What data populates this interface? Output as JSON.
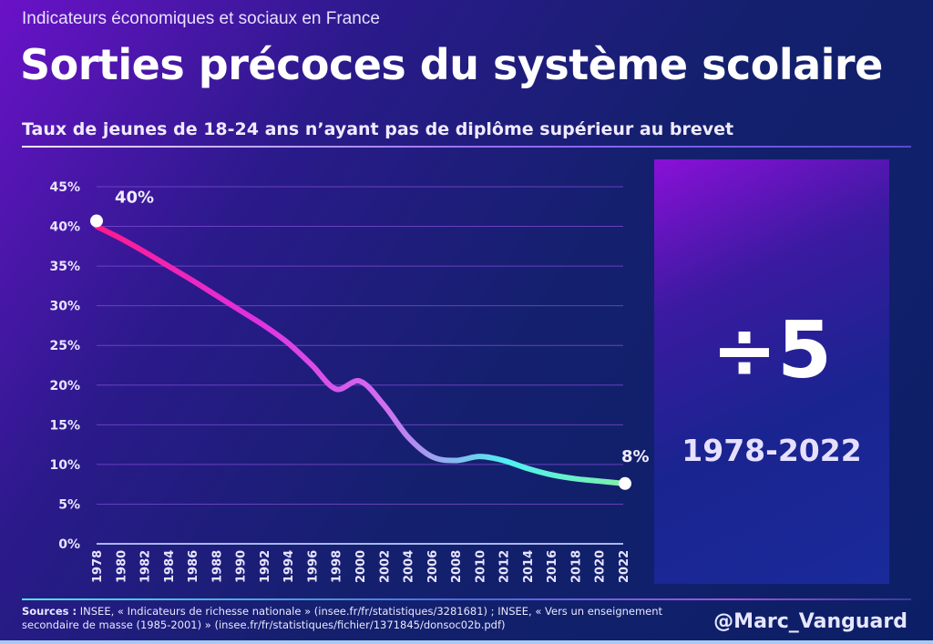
{
  "header": {
    "supertitle": "Indicateurs économiques et sociaux en France",
    "title": "Sorties précoces du système scolaire",
    "subtitle": "Taux de jeunes de 18-24 ans n’ayant pas de diplôme supérieur au brevet"
  },
  "panel": {
    "big_text": "÷5",
    "period": "1978-2022"
  },
  "footer": {
    "sources_label": "Sources :",
    "sources_text": " INSEE, « Indicateurs de richesse nationale » (insee.fr/fr/statistiques/3281681) ; INSEE, « Vers un enseignement secondaire de masse (1985-2001) » (insee.fr/fr/statistiques/fichier/1371845/donsoc02b.pdf)",
    "handle": "@Marc_Vanguard"
  },
  "chart_data": {
    "type": "line",
    "title": "Taux de jeunes de 18-24 ans n’ayant pas de diplôme supérieur au brevet",
    "x": [
      1978,
      1980,
      1982,
      1984,
      1986,
      1988,
      1990,
      1992,
      1994,
      1996,
      1998,
      2000,
      2002,
      2004,
      2006,
      2008,
      2010,
      2012,
      2014,
      2016,
      2018,
      2020,
      2022
    ],
    "values": [
      40,
      38.5,
      36.8,
      35,
      33.2,
      31.3,
      29.4,
      27.5,
      25.3,
      22.5,
      19.5,
      20.5,
      17.5,
      13.5,
      11,
      10.5,
      11,
      10.5,
      9.5,
      8.7,
      8.2,
      7.9,
      7.6
    ],
    "x_ticks": [
      "1978",
      "1980",
      "1982",
      "1984",
      "1986",
      "1988",
      "1990",
      "1992",
      "1994",
      "1996",
      "1998",
      "2000",
      "2002",
      "2004",
      "2006",
      "2008",
      "2010",
      "2012",
      "2014",
      "2016",
      "2018",
      "2020",
      "2022"
    ],
    "y_ticks": [
      "0%",
      "5%",
      "10%",
      "15%",
      "20%",
      "25%",
      "30%",
      "35%",
      "40%",
      "45%"
    ],
    "ylim": [
      0,
      45
    ],
    "grid": true,
    "annotations": [
      {
        "x": 1978,
        "label": "40%"
      },
      {
        "x": 2022,
        "label": "8%"
      }
    ],
    "colors": {
      "start": "#ff1a8c",
      "mid": "#d070f0",
      "late": "#4ef0f0",
      "end": "#80f0a8",
      "grid": "#7a4ad0",
      "axis": "#a8b8f0"
    }
  }
}
